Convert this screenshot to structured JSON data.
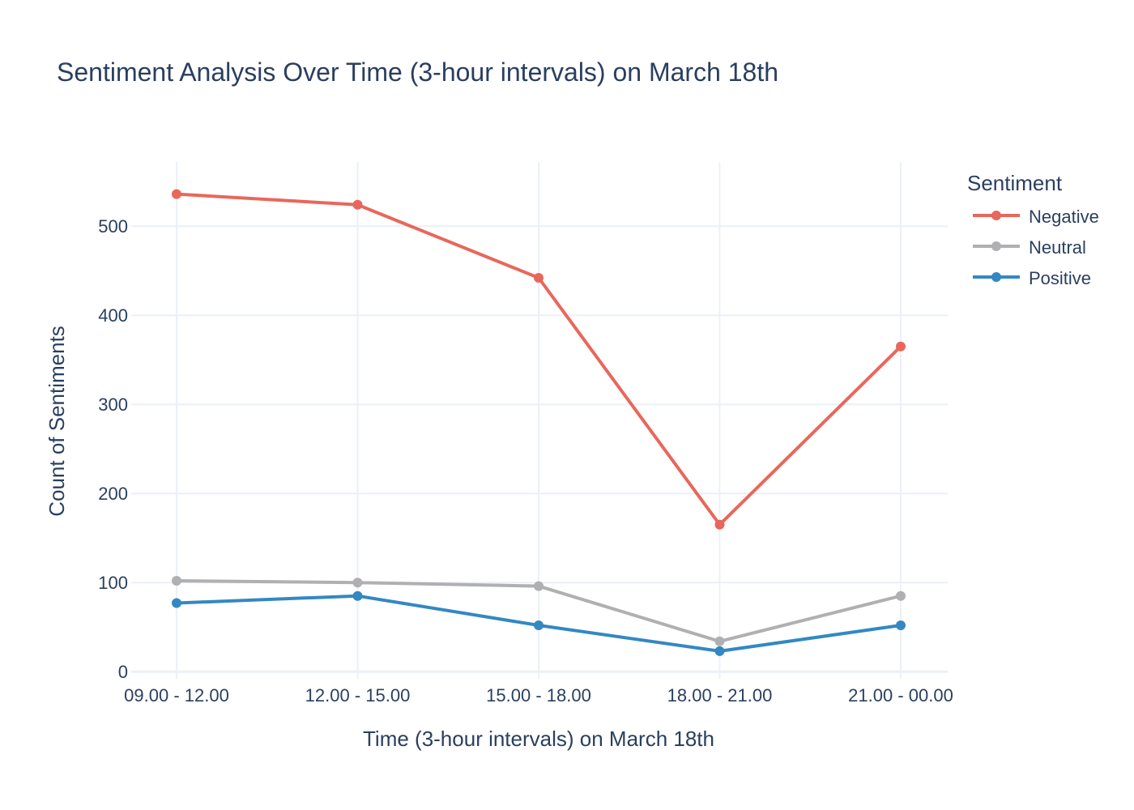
{
  "chart_data": {
    "type": "line",
    "title": "Sentiment Analysis Over Time (3-hour intervals) on March 18th",
    "xlabel": "Time (3-hour intervals) on March 18th",
    "ylabel": "Count of Sentiments",
    "categories": [
      "09.00 - 12.00",
      "12.00 - 15.00",
      "15.00 - 18.00",
      "18.00 - 21.00",
      "21.00 - 00.00"
    ],
    "ylim": [
      -8,
      572
    ],
    "yticks": [
      0,
      100,
      200,
      300,
      400,
      500
    ],
    "grid": true,
    "legend": {
      "title": "Sentiment",
      "placement": "top-right"
    },
    "series": [
      {
        "name": "Negative",
        "color": "#e8675c",
        "values": [
          536,
          524,
          442,
          165,
          365
        ]
      },
      {
        "name": "Neutral",
        "color": "#b0b0b2",
        "values": [
          102,
          100,
          96,
          34,
          85
        ]
      },
      {
        "name": "Positive",
        "color": "#3388c2",
        "values": [
          77,
          85,
          52,
          23,
          52
        ]
      }
    ]
  }
}
